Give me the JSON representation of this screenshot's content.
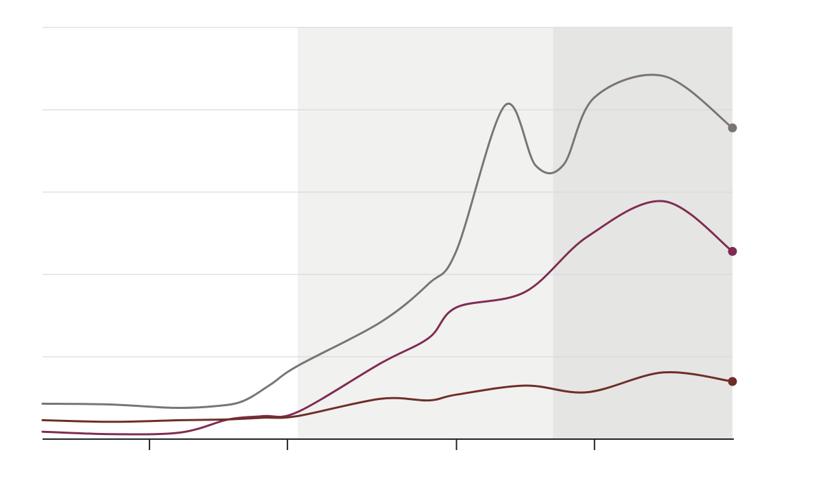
{
  "chart_data": {
    "type": "line",
    "title": "",
    "xlabel": "",
    "ylabel": "",
    "xlim": [
      0,
      100
    ],
    "ylim": [
      0,
      5
    ],
    "y_gridlines": [
      1,
      2,
      3,
      4,
      5
    ],
    "x_ticks": [
      15.5,
      35.5,
      60,
      80
    ],
    "grid": true,
    "shaded_bands": [
      {
        "from": 37,
        "to": 74,
        "color": "#f1f1f0"
      },
      {
        "from": 74,
        "to": 100,
        "color": "#e5e5e4"
      }
    ],
    "series": [
      {
        "color": "#7a7472",
        "end_marker": true,
        "points": [
          [
            0,
            0.43
          ],
          [
            10,
            0.42
          ],
          [
            19,
            0.38
          ],
          [
            25,
            0.4
          ],
          [
            29,
            0.46
          ],
          [
            33,
            0.66
          ],
          [
            37,
            0.89
          ],
          [
            49,
            1.42
          ],
          [
            56,
            1.89
          ],
          [
            60,
            2.29
          ],
          [
            67,
            4.05
          ],
          [
            71.5,
            3.32
          ],
          [
            75.5,
            3.33
          ],
          [
            80,
            4.15
          ],
          [
            90,
            4.41
          ],
          [
            100,
            3.78
          ]
        ]
      },
      {
        "color": "#7f2c52",
        "end_marker": true,
        "points": [
          [
            0,
            0.09
          ],
          [
            10,
            0.06
          ],
          [
            20,
            0.08
          ],
          [
            27,
            0.24
          ],
          [
            32,
            0.28
          ],
          [
            37,
            0.33
          ],
          [
            49,
            0.92
          ],
          [
            56,
            1.23
          ],
          [
            60,
            1.6
          ],
          [
            70,
            1.79
          ],
          [
            79,
            2.46
          ],
          [
            90,
            2.89
          ],
          [
            100,
            2.28
          ]
        ]
      },
      {
        "color": "#6e2e25",
        "end_marker": true,
        "points": [
          [
            0,
            0.23
          ],
          [
            10,
            0.21
          ],
          [
            20,
            0.23
          ],
          [
            27,
            0.24
          ],
          [
            32,
            0.26
          ],
          [
            37,
            0.28
          ],
          [
            49,
            0.49
          ],
          [
            56,
            0.47
          ],
          [
            60,
            0.54
          ],
          [
            70,
            0.65
          ],
          [
            79,
            0.57
          ],
          [
            90,
            0.81
          ],
          [
            100,
            0.7
          ]
        ]
      }
    ]
  }
}
